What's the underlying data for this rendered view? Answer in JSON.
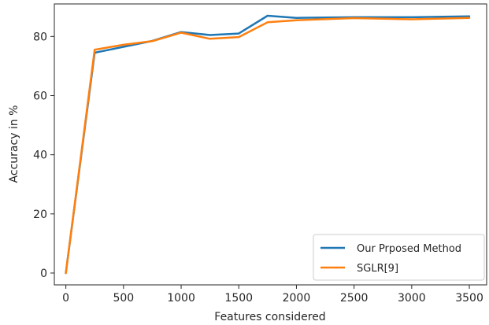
{
  "chart_data": {
    "type": "line",
    "title": "",
    "xlabel": "Features considered",
    "ylabel": "Accuracy in %",
    "xlim": [
      -100,
      3650
    ],
    "ylim": [
      -4,
      91
    ],
    "xticks": [
      0,
      500,
      1000,
      1500,
      2000,
      2500,
      3000,
      3500
    ],
    "yticks": [
      0,
      20,
      40,
      60,
      80
    ],
    "grid": false,
    "legend_position": "bottom-right",
    "x": [
      0,
      250,
      500,
      750,
      1000,
      1250,
      1500,
      1750,
      2000,
      2500,
      3000,
      3500
    ],
    "series": [
      {
        "name": "Our Prposed Method",
        "color": "#1f77b4",
        "values": [
          0,
          74.5,
          76.5,
          78.5,
          81.5,
          80.5,
          81,
          87,
          86.3,
          86.5,
          86.5,
          86.8
        ]
      },
      {
        "name": "SGLR[9]",
        "color": "#ff7f0e",
        "values": [
          0,
          75.5,
          77.2,
          78.4,
          81.3,
          79.2,
          79.8,
          84.8,
          85.5,
          86.2,
          85.8,
          86.3
        ]
      }
    ]
  }
}
